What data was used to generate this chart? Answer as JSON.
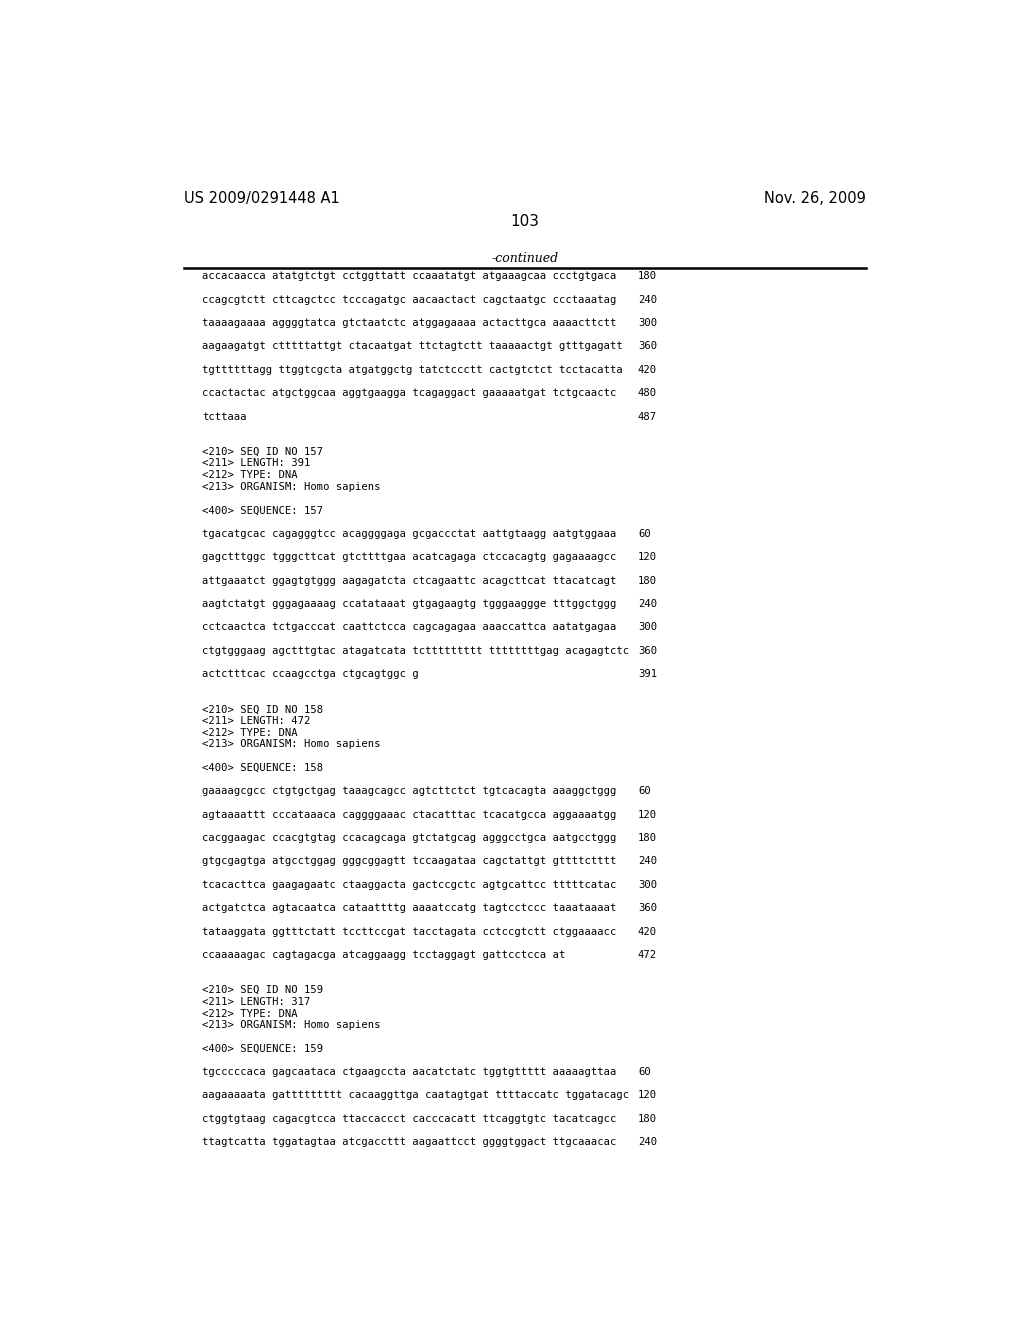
{
  "header_left": "US 2009/0291448 A1",
  "header_right": "Nov. 26, 2009",
  "page_number": "103",
  "continued_label": "-continued",
  "background_color": "#ffffff",
  "text_color": "#000000",
  "lines": [
    {
      "text": "accacaacca atatgtctgt cctggttatt ccaaatatgt atgaaagcaa ccctgtgaca",
      "num": "180"
    },
    {
      "text": "",
      "num": ""
    },
    {
      "text": "ccagcgtctt cttcagctcc tcccagatgc aacaactact cagctaatgc ccctaaatag",
      "num": "240"
    },
    {
      "text": "",
      "num": ""
    },
    {
      "text": "taaaagaaaa aggggtatca gtctaatctc atggagaaaa actacttgca aaaacttctt",
      "num": "300"
    },
    {
      "text": "",
      "num": ""
    },
    {
      "text": "aagaagatgt ctttttattgt ctacaatgat ttctagtctt taaaaactgt gtttgagatt",
      "num": "360"
    },
    {
      "text": "",
      "num": ""
    },
    {
      "text": "tgttttttagg ttggtcgcta atgatggctg tatctccctt cactgtctct tcctacatta",
      "num": "420"
    },
    {
      "text": "",
      "num": ""
    },
    {
      "text": "ccactactac atgctggcaa aggtgaagga tcagaggact gaaaaatgat tctgcaactc",
      "num": "480"
    },
    {
      "text": "",
      "num": ""
    },
    {
      "text": "tcttaaa",
      "num": "487"
    },
    {
      "text": "",
      "num": ""
    },
    {
      "text": "",
      "num": ""
    },
    {
      "text": "<210> SEQ ID NO 157",
      "num": ""
    },
    {
      "text": "<211> LENGTH: 391",
      "num": ""
    },
    {
      "text": "<212> TYPE: DNA",
      "num": ""
    },
    {
      "text": "<213> ORGANISM: Homo sapiens",
      "num": ""
    },
    {
      "text": "",
      "num": ""
    },
    {
      "text": "<400> SEQUENCE: 157",
      "num": ""
    },
    {
      "text": "",
      "num": ""
    },
    {
      "text": "tgacatgcac cagagggtcc acaggggaga gcgaccctat aattgtaagg aatgtggaaa",
      "num": "60"
    },
    {
      "text": "",
      "num": ""
    },
    {
      "text": "gagctttggc tgggcttcat gtcttttgaa acatcagaga ctccacagtg gagaaaagcc",
      "num": "120"
    },
    {
      "text": "",
      "num": ""
    },
    {
      "text": "attgaaatct ggagtgtggg aagagatcta ctcagaattc acagcttcat ttacatcagt",
      "num": "180"
    },
    {
      "text": "",
      "num": ""
    },
    {
      "text": "aagtctatgt gggagaaaag ccatataaat gtgagaagtg tgggaaggge tttggctggg",
      "num": "240"
    },
    {
      "text": "",
      "num": ""
    },
    {
      "text": "cctcaactca tctgacccat caattctcca cagcagagaa aaaccattca aatatgagaa",
      "num": "300"
    },
    {
      "text": "",
      "num": ""
    },
    {
      "text": "ctgtgggaag agctttgtac atagatcata tcttttttttt ttttttttgag acagagtctc",
      "num": "360"
    },
    {
      "text": "",
      "num": ""
    },
    {
      "text": "actctttcac ccaagcctga ctgcagtggc g",
      "num": "391"
    },
    {
      "text": "",
      "num": ""
    },
    {
      "text": "",
      "num": ""
    },
    {
      "text": "<210> SEQ ID NO 158",
      "num": ""
    },
    {
      "text": "<211> LENGTH: 472",
      "num": ""
    },
    {
      "text": "<212> TYPE: DNA",
      "num": ""
    },
    {
      "text": "<213> ORGANISM: Homo sapiens",
      "num": ""
    },
    {
      "text": "",
      "num": ""
    },
    {
      "text": "<400> SEQUENCE: 158",
      "num": ""
    },
    {
      "text": "",
      "num": ""
    },
    {
      "text": "gaaaagcgcc ctgtgctgag taaagcagcc agtcttctct tgtcacagta aaaggctggg",
      "num": "60"
    },
    {
      "text": "",
      "num": ""
    },
    {
      "text": "agtaaaattt cccataaaca caggggaaac ctacatttac tcacatgcca aggaaaatgg",
      "num": "120"
    },
    {
      "text": "",
      "num": ""
    },
    {
      "text": "cacggaagac ccacgtgtag ccacagcaga gtctatgcag agggcctgca aatgcctggg",
      "num": "180"
    },
    {
      "text": "",
      "num": ""
    },
    {
      "text": "gtgcgagtga atgcctggag gggcggagtt tccaagataa cagctattgt gttttctttt",
      "num": "240"
    },
    {
      "text": "",
      "num": ""
    },
    {
      "text": "tcacacttca gaagagaatc ctaaggacta gactccgctc agtgcattcc tttttcatac",
      "num": "300"
    },
    {
      "text": "",
      "num": ""
    },
    {
      "text": "actgatctca agtacaatca cataattttg aaaatccatg tagtcctccc taaataaaat",
      "num": "360"
    },
    {
      "text": "",
      "num": ""
    },
    {
      "text": "tataaggata ggtttctatt tccttccgat tacctagata cctccgtctt ctggaaaacc",
      "num": "420"
    },
    {
      "text": "",
      "num": ""
    },
    {
      "text": "ccaaaaagac cagtagacga atcaggaagg tcctaggagt gattcctcca at",
      "num": "472"
    },
    {
      "text": "",
      "num": ""
    },
    {
      "text": "",
      "num": ""
    },
    {
      "text": "<210> SEQ ID NO 159",
      "num": ""
    },
    {
      "text": "<211> LENGTH: 317",
      "num": ""
    },
    {
      "text": "<212> TYPE: DNA",
      "num": ""
    },
    {
      "text": "<213> ORGANISM: Homo sapiens",
      "num": ""
    },
    {
      "text": "",
      "num": ""
    },
    {
      "text": "<400> SEQUENCE: 159",
      "num": ""
    },
    {
      "text": "",
      "num": ""
    },
    {
      "text": "tgcccccaca gagcaataca ctgaagccta aacatctatc tggtgttttt aaaaagttaa",
      "num": "60"
    },
    {
      "text": "",
      "num": ""
    },
    {
      "text": "aagaaaaata gattttttttt cacaaggttga caatagtgat ttttaccatc tggatacagc",
      "num": "120"
    },
    {
      "text": "",
      "num": ""
    },
    {
      "text": "ctggtgtaag cagacgtcca ttaccaccct cacccacatt ttcaggtgtc tacatcagcc",
      "num": "180"
    },
    {
      "text": "",
      "num": ""
    },
    {
      "text": "ttagtcatta tggatagtaa atcgaccttt aagaattcct ggggtggact ttgcaaacac",
      "num": "240"
    }
  ]
}
